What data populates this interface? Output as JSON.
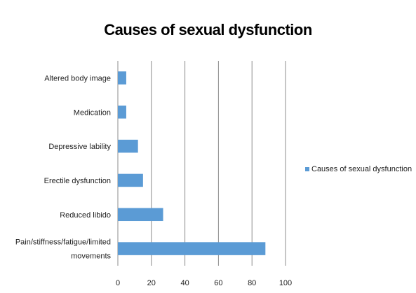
{
  "chart_data": {
    "type": "bar",
    "orientation": "horizontal",
    "title": "Causes of sexual dysfunction",
    "categories": [
      "Altered body image",
      "Medication",
      "Depressive lability",
      "Erectile dysfunction",
      "Reduced libido",
      "Pain/stiffness/fatigue/limited movements"
    ],
    "category_lines": [
      [
        "Altered body image"
      ],
      [
        "Medication"
      ],
      [
        "Depressive lability"
      ],
      [
        "Erectile dysfunction"
      ],
      [
        "Reduced libido"
      ],
      [
        "Pain/stiffness/fatigue/limited",
        "movements"
      ]
    ],
    "series": [
      {
        "name": "Causes of sexual dysfunction",
        "values": [
          5,
          5,
          12,
          15,
          27,
          88
        ],
        "color": "#5b9bd5"
      }
    ],
    "xlim": [
      0,
      100
    ],
    "xticks": [
      0,
      20,
      40,
      60,
      80,
      100
    ],
    "grid": "vertical",
    "legend_position": "right"
  },
  "legend": {
    "label": "Causes of sexual dysfunction",
    "color": "#5b9bd5"
  }
}
